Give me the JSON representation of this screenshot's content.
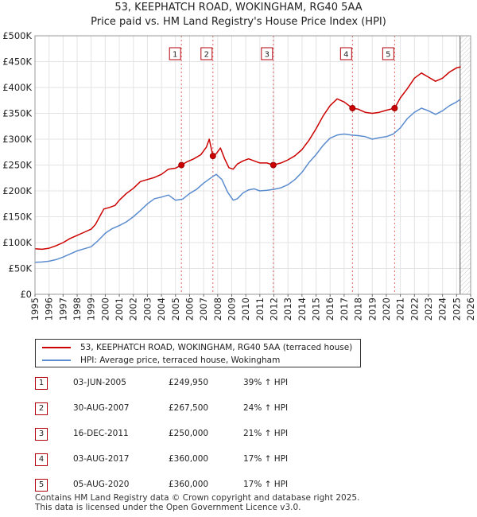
{
  "title_line1": "53, KEEPHATCH ROAD, WOKINGHAM, RG40 5AA",
  "title_line2": "Price paid vs. HM Land Registry's House Price Index (HPI)",
  "chart_data": {
    "type": "line",
    "xlim": [
      1995,
      2026
    ],
    "ylim": [
      0,
      500000
    ],
    "x_ticks": [
      1995,
      1996,
      1997,
      1998,
      1999,
      2000,
      2001,
      2002,
      2003,
      2004,
      2005,
      2006,
      2007,
      2008,
      2009,
      2010,
      2011,
      2012,
      2013,
      2014,
      2015,
      2016,
      2017,
      2018,
      2019,
      2020,
      2021,
      2022,
      2023,
      2024,
      2025,
      2026
    ],
    "x_tick_labels": [
      "1995",
      "1996",
      "1997",
      "1998",
      "1999",
      "2000",
      "2001",
      "2002",
      "2003",
      "2004",
      "2005",
      "2006",
      "2007",
      "2008",
      "2009",
      "2010",
      "2011",
      "2012",
      "2013",
      "2014",
      "2015",
      "2016",
      "2017",
      "2018",
      "2019",
      "2020",
      "2021",
      "2022",
      "2023",
      "2024",
      "2025",
      "2026"
    ],
    "y_ticks": [
      0,
      50000,
      100000,
      150000,
      200000,
      250000,
      300000,
      350000,
      400000,
      450000,
      500000
    ],
    "y_tick_labels": [
      "£0",
      "£50K",
      "£100K",
      "£150K",
      "£200K",
      "£250K",
      "£300K",
      "£350K",
      "£400K",
      "£450K",
      "£500K"
    ],
    "grid": true,
    "hatch_from": 2025.25,
    "series": [
      {
        "name": "53, KEEPHATCH ROAD, WOKINGHAM, RG40 5AA (terraced house)",
        "color": "#cc0000",
        "x": [
          1995,
          1995.5,
          1996,
          1996.5,
          1997,
          1997.5,
          1998,
          1998.5,
          1999,
          1999.3,
          1999.6,
          1999.9,
          2000.3,
          2000.7,
          2001,
          2001.5,
          2002,
          2002.5,
          2003,
          2003.5,
          2004,
          2004.5,
          2005,
          2005.42,
          2005.8,
          2006.3,
          2006.8,
          2007.2,
          2007.4,
          2007.66,
          2007.9,
          2008.2,
          2008.5,
          2008.8,
          2009.1,
          2009.4,
          2009.8,
          2010.2,
          2010.6,
          2011,
          2011.5,
          2011.96,
          2012.5,
          2013,
          2013.5,
          2014,
          2014.5,
          2015,
          2015.5,
          2016,
          2016.5,
          2017,
          2017.59,
          2018,
          2018.5,
          2019,
          2019.5,
          2020,
          2020.59,
          2021,
          2021.5,
          2022,
          2022.5,
          2023,
          2023.5,
          2024,
          2024.5,
          2025,
          2025.3
        ],
        "y": [
          88000,
          87000,
          89000,
          94000,
          100000,
          108000,
          114000,
          120000,
          126000,
          135000,
          150000,
          165000,
          168000,
          172000,
          182000,
          195000,
          205000,
          218000,
          222000,
          226000,
          232000,
          242000,
          244000,
          249950,
          256000,
          262000,
          270000,
          285000,
          300000,
          267500,
          272000,
          283000,
          262000,
          245000,
          242000,
          252000,
          258000,
          262000,
          258000,
          254000,
          254000,
          250000,
          254000,
          260000,
          268000,
          280000,
          298000,
          320000,
          345000,
          365000,
          378000,
          372000,
          360000,
          358000,
          352000,
          350000,
          352000,
          356000,
          360000,
          380000,
          398000,
          418000,
          428000,
          420000,
          412000,
          418000,
          430000,
          438000,
          440000
        ]
      },
      {
        "name": "HPI: Average price, terraced house, Wokingham",
        "color": "#5b8ccf",
        "x": [
          1995,
          1995.5,
          1996,
          1996.5,
          1997,
          1997.5,
          1998,
          1998.5,
          1999,
          1999.5,
          2000,
          2000.5,
          2001,
          2001.5,
          2002,
          2002.5,
          2003,
          2003.5,
          2004,
          2004.5,
          2005,
          2005.5,
          2006,
          2006.5,
          2007,
          2007.5,
          2007.9,
          2008.3,
          2008.7,
          2009.1,
          2009.4,
          2009.8,
          2010.2,
          2010.6,
          2011,
          2011.5,
          2012,
          2012.5,
          2013,
          2013.5,
          2014,
          2014.5,
          2015,
          2015.5,
          2016,
          2016.5,
          2017,
          2017.5,
          2018,
          2018.5,
          2019,
          2019.5,
          2020,
          2020.5,
          2021,
          2021.5,
          2022,
          2022.5,
          2023,
          2023.5,
          2024,
          2024.5,
          2025,
          2025.3
        ],
        "y": [
          62000,
          62500,
          64000,
          67000,
          72000,
          78000,
          84000,
          88000,
          92000,
          104000,
          118000,
          127000,
          133000,
          140000,
          150000,
          162000,
          175000,
          185000,
          188000,
          192000,
          182000,
          184000,
          195000,
          203000,
          215000,
          225000,
          232000,
          222000,
          198000,
          182000,
          185000,
          196000,
          202000,
          204000,
          200000,
          201000,
          203000,
          206000,
          212000,
          222000,
          236000,
          255000,
          270000,
          288000,
          302000,
          308000,
          310000,
          308000,
          307000,
          305000,
          300000,
          303000,
          305000,
          310000,
          322000,
          340000,
          352000,
          360000,
          355000,
          348000,
          355000,
          365000,
          372000,
          378000
        ]
      }
    ],
    "sales": [
      {
        "id": "1",
        "date": "03-JUN-2005",
        "x": 2005.42,
        "price": 249950,
        "price_label": "£249,950",
        "hpi": "39% ↑ HPI"
      },
      {
        "id": "2",
        "date": "30-AUG-2007",
        "x": 2007.66,
        "price": 267500,
        "price_label": "£267,500",
        "hpi": "24% ↑ HPI"
      },
      {
        "id": "3",
        "date": "16-DEC-2011",
        "x": 2011.96,
        "price": 250000,
        "price_label": "£250,000",
        "hpi": "21% ↑ HPI"
      },
      {
        "id": "4",
        "date": "03-AUG-2017",
        "x": 2017.59,
        "price": 360000,
        "price_label": "£360,000",
        "hpi": "17% ↑ HPI"
      },
      {
        "id": "5",
        "date": "05-AUG-2020",
        "x": 2020.59,
        "price": 360000,
        "price_label": "£360,000",
        "hpi": "17% ↑ HPI"
      }
    ]
  },
  "legend": {
    "property_label": "53, KEEPHATCH ROAD, WOKINGHAM, RG40 5AA (terraced house)",
    "hpi_label": "HPI: Average price, terraced house, Wokingham"
  },
  "footer": {
    "line1": "Contains HM Land Registry data © Crown copyright and database right 2025.",
    "line2": "This data is licensed under the Open Government Licence v3.0."
  }
}
